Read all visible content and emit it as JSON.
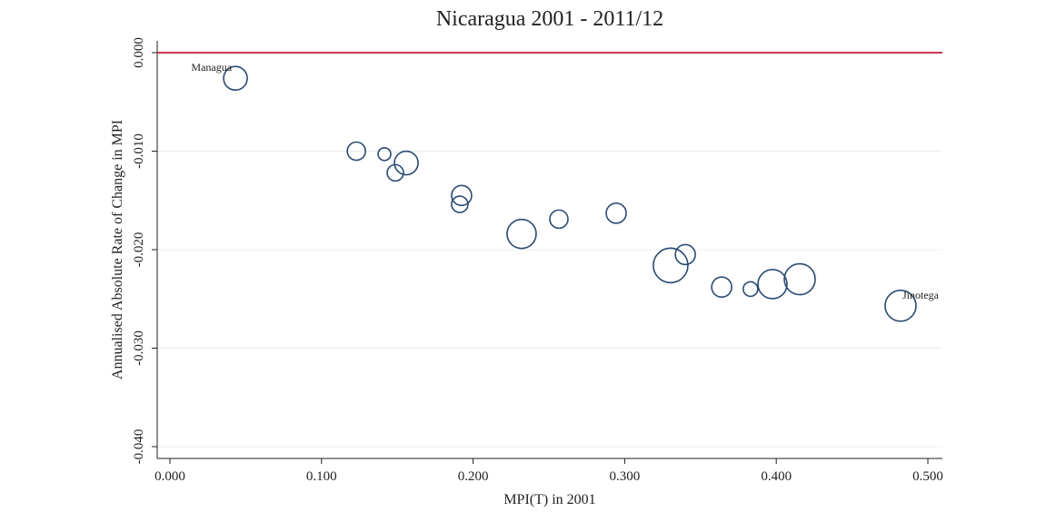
{
  "chart_data": {
    "type": "bubble",
    "title": "Nicaragua 2001 - 2011/12",
    "x_label": "MPI(T) in 2001",
    "y_label": "Annualised Absolute Rate of Change in MPI",
    "x": [
      0.0432,
      0.123,
      0.1415,
      0.1559,
      0.1487,
      0.1924,
      0.1912,
      0.232,
      0.2566,
      0.2944,
      0.3303,
      0.34,
      0.364,
      0.383,
      0.3975,
      0.4155,
      0.482
    ],
    "values": [
      -0.0026,
      -0.01,
      -0.0103,
      -0.0112,
      -0.0122,
      -0.0145,
      -0.0154,
      -0.0184,
      -0.0169,
      -0.0163,
      -0.0216,
      -0.0205,
      -0.0238,
      -0.024,
      -0.0235,
      -0.023,
      -0.0257
    ],
    "sizes": [
      169,
      100,
      49,
      169,
      81,
      121,
      81,
      256,
      100,
      121,
      361,
      121,
      121,
      64,
      256,
      289,
      289
    ],
    "point_labels": [
      "Managua",
      null,
      null,
      null,
      null,
      null,
      null,
      null,
      null,
      null,
      null,
      null,
      null,
      null,
      null,
      null,
      "Jinotega"
    ],
    "color": "#2b4a72",
    "label_color": "#8b2a2a",
    "xlim": [
      -0.0084,
      0.5096
    ],
    "ylim": [
      -0.0412,
      0.0012
    ],
    "xticks": [
      {
        "value": 0,
        "label": "0.000"
      },
      {
        "value": 0.1,
        "label": "0.100"
      },
      {
        "value": 0.2,
        "label": "0.200"
      },
      {
        "value": 0.3,
        "label": "0.300"
      },
      {
        "value": 0.4,
        "label": "0.400"
      },
      {
        "value": 0.5,
        "label": "0.500"
      }
    ],
    "yticks": [
      {
        "value": 0,
        "label": "0.000"
      },
      {
        "value": -0.01,
        "label": "-0.010"
      },
      {
        "value": -0.02,
        "label": "-0.020"
      },
      {
        "value": -0.03,
        "label": "-0.030"
      },
      {
        "value": -0.04,
        "label": "-0.040"
      }
    ],
    "grid": true,
    "reference_line": {
      "value": 0,
      "color": "#c8374f"
    }
  }
}
